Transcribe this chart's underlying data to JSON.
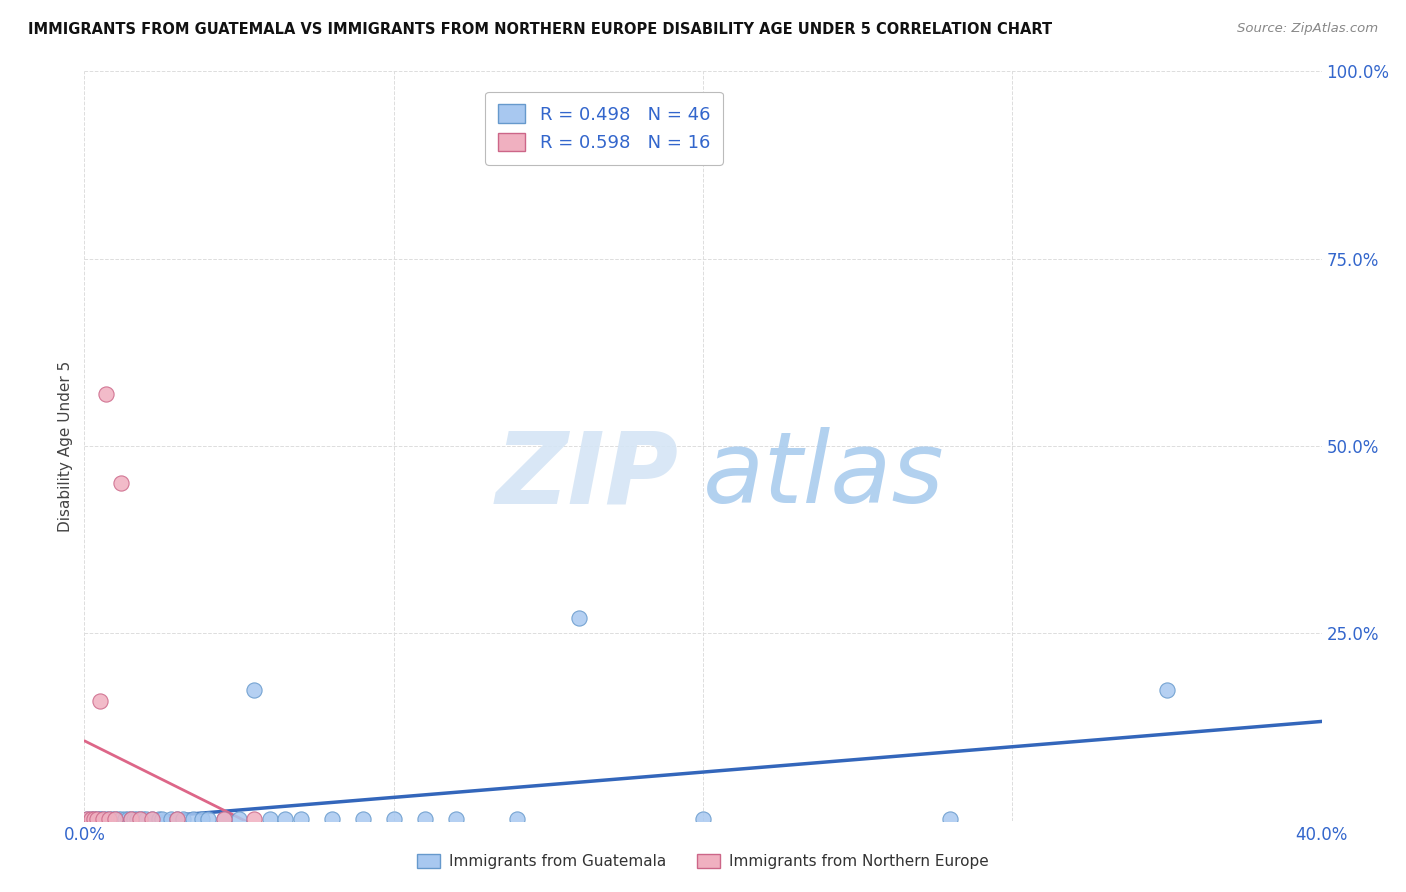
{
  "title": "IMMIGRANTS FROM GUATEMALA VS IMMIGRANTS FROM NORTHERN EUROPE DISABILITY AGE UNDER 5 CORRELATION CHART",
  "source": "Source: ZipAtlas.com",
  "ylabel": "Disability Age Under 5",
  "xlim": [
    0.0,
    0.4
  ],
  "ylim": [
    0.0,
    1.0
  ],
  "guatemala_color": "#a8c8f0",
  "guatemala_edge_color": "#6699cc",
  "northern_europe_color": "#f0b0c0",
  "northern_europe_edge_color": "#cc6688",
  "guatemala_line_color": "#3366bb",
  "northern_europe_line_color": "#dd6688",
  "R_guatemala": 0.498,
  "N_guatemala": 46,
  "R_northern_europe": 0.598,
  "N_northern_europe": 16,
  "guat_x": [
    0.001,
    0.002,
    0.003,
    0.004,
    0.005,
    0.005,
    0.006,
    0.007,
    0.008,
    0.009,
    0.01,
    0.011,
    0.012,
    0.013,
    0.014,
    0.015,
    0.016,
    0.017,
    0.018,
    0.019,
    0.02,
    0.022,
    0.024,
    0.025,
    0.028,
    0.03,
    0.032,
    0.035,
    0.038,
    0.04,
    0.045,
    0.05,
    0.055,
    0.06,
    0.065,
    0.07,
    0.08,
    0.09,
    0.1,
    0.11,
    0.12,
    0.14,
    0.16,
    0.2,
    0.28,
    0.35
  ],
  "guat_y": [
    0.002,
    0.002,
    0.002,
    0.002,
    0.002,
    0.002,
    0.002,
    0.002,
    0.002,
    0.002,
    0.002,
    0.002,
    0.002,
    0.002,
    0.002,
    0.002,
    0.002,
    0.002,
    0.002,
    0.002,
    0.002,
    0.002,
    0.002,
    0.002,
    0.002,
    0.002,
    0.002,
    0.002,
    0.002,
    0.002,
    0.002,
    0.002,
    0.175,
    0.002,
    0.002,
    0.002,
    0.002,
    0.002,
    0.002,
    0.002,
    0.002,
    0.002,
    0.27,
    0.002,
    0.002,
    0.175
  ],
  "ne_x": [
    0.001,
    0.002,
    0.003,
    0.004,
    0.005,
    0.006,
    0.007,
    0.008,
    0.01,
    0.012,
    0.015,
    0.018,
    0.022,
    0.03,
    0.045,
    0.055
  ],
  "ne_y": [
    0.002,
    0.002,
    0.002,
    0.002,
    0.16,
    0.002,
    0.57,
    0.002,
    0.002,
    0.45,
    0.002,
    0.002,
    0.002,
    0.002,
    0.002,
    0.002
  ],
  "background_color": "#ffffff",
  "grid_color": "#dddddd",
  "watermark_zip_color": "#d5e5f5",
  "watermark_atlas_color": "#aaccee"
}
